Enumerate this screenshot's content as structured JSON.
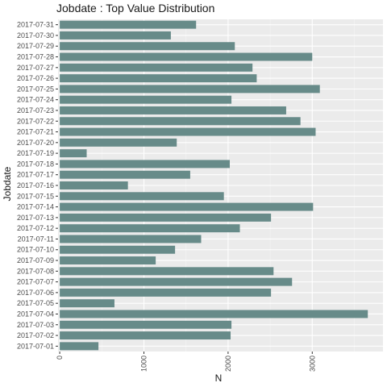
{
  "chart_data": {
    "type": "bar",
    "orientation": "horizontal",
    "title": "Jobdate : Top Value Distribution",
    "xlabel": "N",
    "ylabel": "Jobdate",
    "categories": [
      "2017-07-01",
      "2017-07-02",
      "2017-07-03",
      "2017-07-04",
      "2017-07-05",
      "2017-07-06",
      "2017-07-07",
      "2017-07-08",
      "2017-07-09",
      "2017-07-10",
      "2017-07-11",
      "2017-07-12",
      "2017-07-13",
      "2017-07-14",
      "2017-07-15",
      "2017-07-16",
      "2017-07-17",
      "2017-07-18",
      "2017-07-19",
      "2017-07-20",
      "2017-07-21",
      "2017-07-22",
      "2017-07-23",
      "2017-07-24",
      "2017-07-25",
      "2017-07-26",
      "2017-07-27",
      "2017-07-28",
      "2017-07-29",
      "2017-07-30",
      "2017-07-31"
    ],
    "values": [
      460,
      2030,
      2040,
      3660,
      650,
      2510,
      2760,
      2540,
      1140,
      1370,
      1680,
      2140,
      2510,
      3010,
      1950,
      810,
      1550,
      2020,
      320,
      1390,
      3040,
      2860,
      2690,
      2040,
      3090,
      2340,
      2290,
      3000,
      2080,
      1320,
      1620
    ],
    "xticks": [
      0,
      1000,
      2000,
      3000
    ],
    "xlim": [
      -20,
      3840
    ],
    "grid": true,
    "colors": {
      "bar": "#678b89",
      "panel": "#ebebeb",
      "grid_major": "#ffffff",
      "grid_minor": "#f5f5f5"
    }
  }
}
